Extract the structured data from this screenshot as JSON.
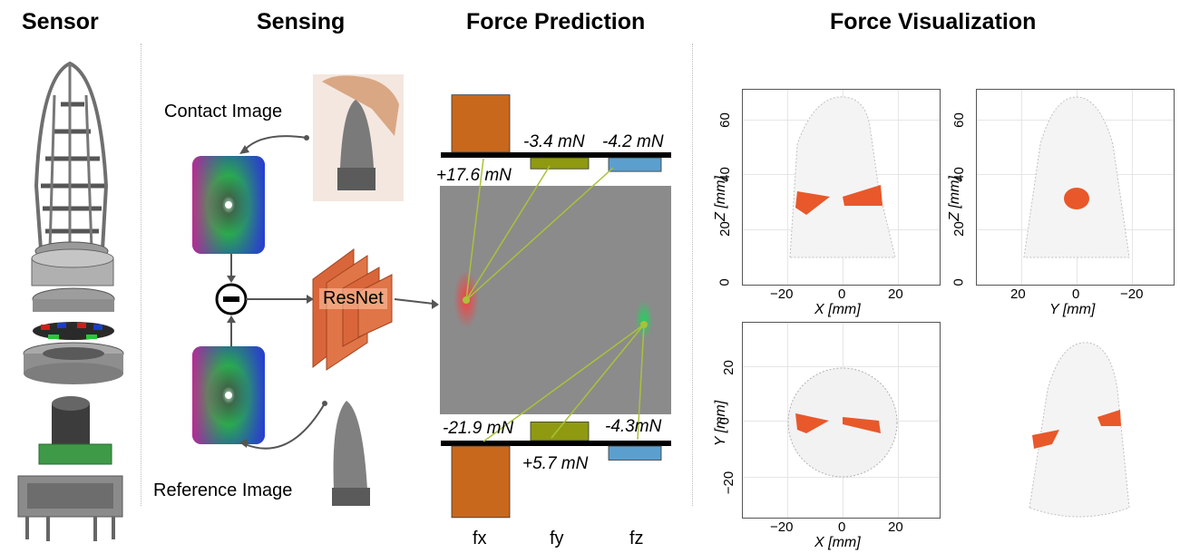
{
  "sections": {
    "sensor": "Sensor",
    "sensing": "Sensing",
    "force_prediction": "Force Prediction",
    "force_visualization": "Force Visualization"
  },
  "sensing": {
    "contact_label": "Contact Image",
    "reference_label": "Reference Image",
    "network_label": "ResNet",
    "subtract_symbol": "−"
  },
  "prediction": {
    "contact_1": {
      "fx": 17.6,
      "fy": -3.4,
      "fz": -4.2
    },
    "contact_1_labels": {
      "fx": "+17.6 mN",
      "fy": "-3.4 mN",
      "fz": "-4.2 mN"
    },
    "contact_2": {
      "fx": -21.9,
      "fy": 5.7,
      "fz": -4.3
    },
    "contact_2_labels": {
      "fx": "-21.9 mN",
      "fy": "+5.7 mN",
      "fz": "-4.3mN"
    },
    "axis_labels": {
      "fx": "fx",
      "fy": "fy",
      "fz": "fz"
    },
    "colors": {
      "fx": "#c8681d",
      "fy": "#8f9a10",
      "fz": "#5b9fcf",
      "connector": "#a9c23a"
    }
  },
  "visualization": {
    "xz": {
      "xlabel": "X [mm]",
      "ylabel": "Z [mm]",
      "xticks": [
        "−20",
        "0",
        "20"
      ],
      "yticks": [
        "0",
        "20",
        "40",
        "60"
      ]
    },
    "yz": {
      "xlabel": "Y [mm]",
      "ylabel": "Z [mm]",
      "xticks": [
        "20",
        "0",
        "−20"
      ],
      "yticks": [
        "0",
        "20",
        "40",
        "60"
      ]
    },
    "xy": {
      "xlabel": "X [mm]",
      "ylabel": "Y [mm]",
      "xticks": [
        "−20",
        "0",
        "20"
      ],
      "yticks": [
        "−20",
        "0",
        "20"
      ]
    },
    "contact_color": "#e8582a"
  }
}
